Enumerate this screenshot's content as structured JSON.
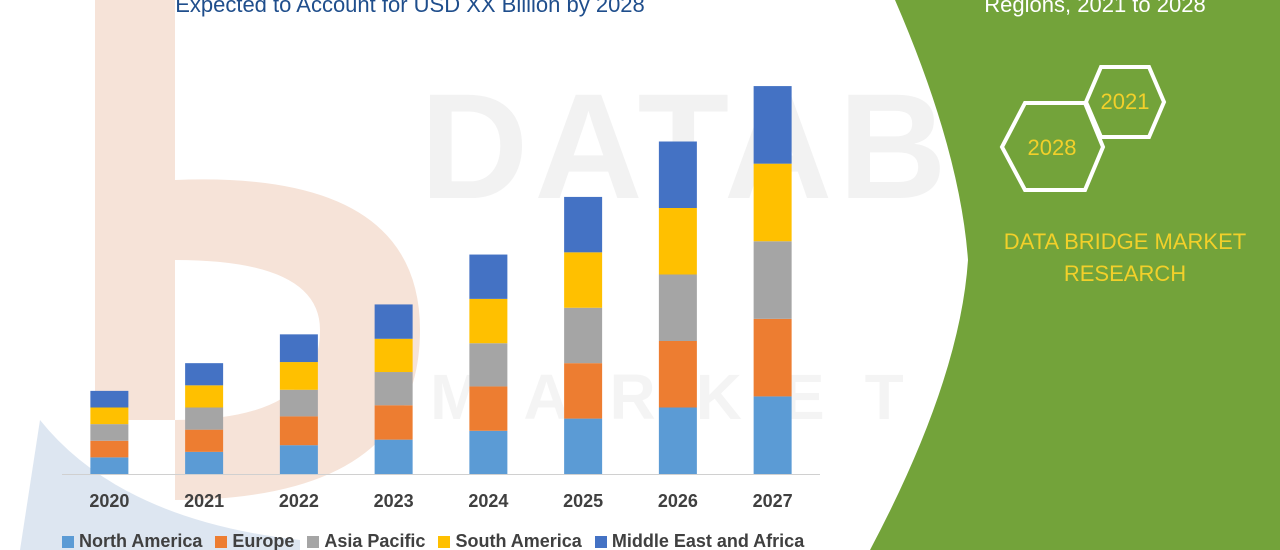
{
  "header": {
    "title": "Expected to Account for USD XX Billion by 2028",
    "side_title": "Regions, 2021 to 2028"
  },
  "badges": {
    "year_a": "2021",
    "year_b": "2028"
  },
  "brand": {
    "line1": "DATA BRIDGE MARKET",
    "line2": "RESEARCH"
  },
  "colors": {
    "panel_green": "#73a33a",
    "accent_yellow": "#f2d02a"
  },
  "chart_data": {
    "type": "bar",
    "stacked": true,
    "categories": [
      "2020",
      "2021",
      "2022",
      "2023",
      "2024",
      "2025",
      "2026",
      "2027"
    ],
    "series": [
      {
        "name": "North America",
        "color": "#5b9bd5",
        "values": [
          15,
          20,
          26,
          31,
          39,
          50,
          60,
          70
        ]
      },
      {
        "name": "Europe",
        "color": "#ed7d31",
        "values": [
          15,
          20,
          26,
          31,
          40,
          50,
          60,
          70
        ]
      },
      {
        "name": "Asia Pacific",
        "color": "#a5a5a5",
        "values": [
          15,
          20,
          24,
          30,
          39,
          50,
          60,
          70
        ]
      },
      {
        "name": "South America",
        "color": "#ffc000",
        "values": [
          15,
          20,
          25,
          30,
          40,
          50,
          60,
          70
        ]
      },
      {
        "name": "Middle East and Africa",
        "color": "#4472c4",
        "values": [
          15,
          20,
          25,
          31,
          40,
          50,
          60,
          70
        ]
      }
    ],
    "ylim": [
      0,
      360
    ],
    "legend_position": "bottom",
    "grid": false
  }
}
